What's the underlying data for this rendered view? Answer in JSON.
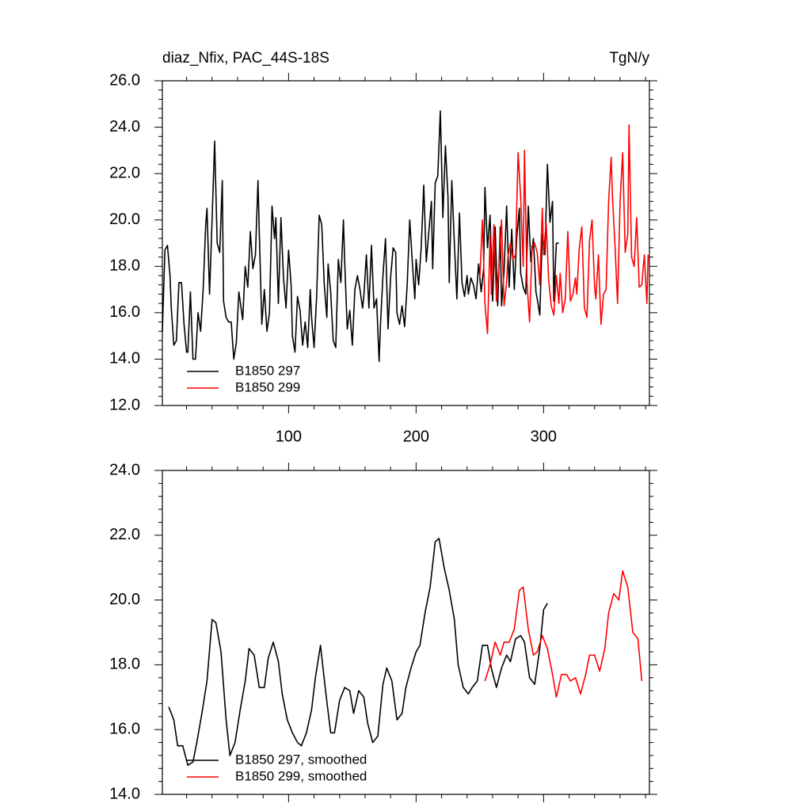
{
  "chart_data": [
    {
      "type": "line",
      "title": "diaz_Nfix, PAC_44S-18S",
      "units": "TgN/y",
      "xlim": [
        1,
        383
      ],
      "xticks": [
        100,
        200,
        300
      ],
      "xtick_labels": true,
      "ylim": [
        12,
        26
      ],
      "yticks": [
        {
          "value": 12,
          "label": "12.0"
        },
        {
          "value": 14,
          "label": "14.0"
        },
        {
          "value": 16,
          "label": "16.0"
        },
        {
          "value": 18,
          "label": "18.0"
        },
        {
          "value": 20,
          "label": "20.0"
        },
        {
          "value": 22,
          "label": "22.0"
        },
        {
          "value": 24,
          "label": "24.0"
        },
        {
          "value": 26,
          "label": "26.0"
        }
      ],
      "legend": "lower left",
      "series": [
        {
          "name": "B1850 297",
          "color": "#000000",
          "x": [
            1,
            3,
            5,
            7,
            8,
            10,
            12,
            14,
            16,
            18,
            20,
            21,
            23,
            25,
            27,
            29,
            31,
            33,
            35,
            36,
            38,
            40,
            42,
            44,
            46,
            48,
            49,
            51,
            53,
            55,
            57,
            59,
            61,
            62,
            64,
            66,
            68,
            70,
            72,
            74,
            76,
            77,
            79,
            81,
            83,
            85,
            87,
            89,
            90,
            92,
            94,
            96,
            98,
            100,
            102,
            103,
            105,
            107,
            109,
            111,
            113,
            115,
            117,
            118,
            120,
            122,
            124,
            126,
            128,
            130,
            131,
            133,
            135,
            137,
            139,
            141,
            143,
            144,
            146,
            148,
            150,
            152,
            154,
            156,
            158,
            159,
            161,
            163,
            165,
            167,
            169,
            171,
            172,
            174,
            176,
            178,
            180,
            182,
            184,
            185,
            187,
            189,
            191,
            193,
            195,
            197,
            199,
            200,
            202,
            204,
            206,
            208,
            210,
            212,
            213,
            215,
            217,
            219,
            221,
            223,
            225,
            226,
            228,
            230,
            232,
            234,
            236,
            238,
            240,
            241,
            243,
            245,
            247,
            249,
            251,
            253,
            254,
            256,
            258,
            260,
            262,
            264,
            266,
            267,
            269,
            271,
            273,
            275,
            277,
            279,
            281,
            282,
            284,
            286,
            288,
            290,
            292,
            294,
            295,
            297,
            299,
            301,
            303,
            305,
            307,
            308,
            310,
            312
          ],
          "values": [
            15.2,
            18.7,
            18.9,
            17.6,
            16.2,
            14.6,
            14.8,
            17.3,
            17.3,
            15.5,
            14.3,
            14.3,
            16.9,
            14.0,
            14.0,
            16.0,
            15.2,
            17.0,
            19.8,
            20.5,
            16.8,
            20.0,
            23.4,
            19.0,
            18.6,
            21.7,
            16.5,
            15.8,
            15.6,
            15.6,
            14.0,
            14.7,
            16.9,
            16.5,
            15.7,
            18.0,
            17.1,
            19.5,
            17.9,
            18.5,
            21.7,
            19.5,
            15.5,
            17.0,
            15.2,
            16.0,
            20.6,
            19.2,
            20.1,
            16.4,
            20.1,
            17.5,
            16.2,
            18.7,
            17.2,
            15.0,
            14.3,
            16.7,
            16.1,
            14.6,
            15.6,
            14.5,
            17.0,
            15.8,
            14.5,
            16.7,
            20.2,
            19.8,
            17.2,
            15.8,
            18.1,
            16.9,
            14.8,
            14.5,
            18.3,
            17.3,
            20.0,
            18.2,
            15.3,
            16.1,
            14.6,
            17.0,
            17.6,
            17.0,
            16.2,
            16.7,
            18.5,
            16.2,
            18.9,
            16.2,
            16.6,
            13.9,
            15.4,
            17.6,
            19.2,
            15.3,
            17.5,
            18.8,
            18.6,
            16.0,
            15.5,
            16.3,
            15.4,
            17.2,
            20.0,
            18.2,
            16.6,
            18.3,
            17.2,
            18.8,
            21.5,
            18.2,
            19.5,
            20.8,
            17.9,
            21.6,
            21.9,
            24.7,
            20.1,
            23.2,
            21.0,
            17.3,
            21.7,
            19.0,
            16.6,
            20.3,
            17.3,
            16.7,
            17.6,
            16.8,
            17.5,
            17.2,
            16.6,
            18.1,
            16.9,
            17.9,
            21.4,
            18.8,
            20.2,
            16.5,
            19.7,
            16.3,
            19.7,
            16.3,
            17.8,
            20.6,
            17.1,
            19.6,
            17.0,
            19.3,
            20.5,
            17.7,
            17.1,
            16.8,
            20.6,
            18.2,
            19.2,
            16.9,
            16.6,
            15.9,
            19.4,
            18.5,
            22.4,
            19.9,
            20.8,
            16.5,
            19.0,
            19.0
          ]
        },
        {
          "name": "B1850 299",
          "color": "#ff0000",
          "x": [
            250,
            252,
            254,
            256,
            258,
            259,
            261,
            263,
            265,
            267,
            269,
            271,
            272,
            274,
            276,
            278,
            280,
            282,
            284,
            285,
            287,
            289,
            291,
            293,
            295,
            297,
            299,
            300,
            302,
            304,
            306,
            308,
            310,
            312,
            313,
            315,
            317,
            319,
            321,
            323,
            325,
            326,
            328,
            330,
            332,
            334,
            336,
            338,
            340,
            341,
            343,
            345,
            347,
            349,
            351,
            353,
            354,
            356,
            358,
            360,
            362,
            364,
            366,
            367,
            369,
            371,
            373,
            375,
            377,
            379,
            381,
            382
          ],
          "values": [
            17.5,
            20.0,
            16.4,
            15.1,
            19.3,
            16.8,
            19.8,
            16.5,
            18.0,
            20.0,
            16.3,
            17.3,
            18.4,
            19.0,
            18.3,
            18.5,
            22.9,
            21.0,
            18.0,
            23.0,
            17.3,
            15.6,
            18.9,
            19.0,
            18.6,
            17.2,
            20.5,
            18.5,
            19.9,
            17.4,
            16.3,
            15.9,
            17.6,
            16.4,
            17.7,
            16.0,
            16.6,
            19.5,
            16.5,
            16.8,
            17.5,
            16.8,
            18.8,
            19.7,
            16.2,
            15.8,
            19.1,
            20.0,
            17.1,
            16.6,
            18.5,
            15.5,
            16.8,
            17.0,
            20.8,
            22.7,
            21.0,
            18.9,
            16.4,
            20.8,
            22.9,
            18.6,
            19.4,
            24.1,
            18.4,
            18.0,
            20.1,
            17.1,
            17.2,
            18.5,
            16.4,
            18.5
          ]
        }
      ]
    },
    {
      "type": "line",
      "xlim": [
        1,
        383
      ],
      "xticks": [
        100,
        200,
        300
      ],
      "xtick_labels": false,
      "ylim": [
        14,
        24
      ],
      "yticks": [
        {
          "value": 14,
          "label": "14.0"
        },
        {
          "value": 16,
          "label": "16.0"
        },
        {
          "value": 18,
          "label": "18.0"
        },
        {
          "value": 20,
          "label": "20.0"
        },
        {
          "value": 22,
          "label": "22.0"
        },
        {
          "value": 24,
          "label": "24.0"
        }
      ],
      "legend": "lower left",
      "series": [
        {
          "name": "B1850 297, smoothed",
          "color": "#000000",
          "x": [
            6,
            10,
            13,
            17,
            21,
            25,
            28,
            32,
            36,
            40,
            43,
            47,
            51,
            54,
            58,
            62,
            66,
            69,
            73,
            77,
            81,
            84,
            88,
            92,
            95,
            99,
            103,
            107,
            110,
            114,
            118,
            121,
            125,
            129,
            133,
            136,
            140,
            144,
            148,
            151,
            155,
            159,
            162,
            166,
            170,
            174,
            177,
            181,
            185,
            189,
            192,
            196,
            200,
            203,
            207,
            211,
            215,
            218,
            222,
            226,
            230,
            233,
            237,
            241,
            244,
            248,
            252,
            256,
            259,
            263,
            267,
            271,
            274,
            278,
            282,
            285,
            289,
            293,
            297,
            300,
            303
          ],
          "values": [
            16.7,
            16.3,
            15.5,
            15.5,
            14.9,
            15.0,
            15.6,
            16.5,
            17.5,
            19.4,
            19.3,
            18.4,
            16.3,
            15.2,
            15.6,
            16.6,
            17.5,
            18.5,
            18.3,
            17.3,
            17.3,
            18.2,
            18.7,
            18.1,
            17.1,
            16.3,
            15.9,
            15.6,
            15.5,
            15.9,
            16.6,
            17.6,
            18.6,
            17.2,
            15.9,
            15.9,
            16.9,
            17.3,
            17.2,
            16.5,
            17.2,
            17.0,
            16.2,
            15.6,
            15.8,
            17.4,
            17.9,
            17.5,
            16.3,
            16.5,
            17.3,
            17.9,
            18.4,
            18.6,
            19.6,
            20.4,
            21.8,
            21.9,
            21.0,
            20.3,
            19.4,
            18.0,
            17.3,
            17.1,
            17.3,
            17.5,
            18.6,
            18.6,
            17.9,
            17.3,
            17.9,
            18.3,
            18.1,
            18.8,
            18.9,
            18.7,
            17.6,
            17.4,
            18.5,
            19.7,
            19.9
          ]
        },
        {
          "name": "B1850 299, smoothed",
          "color": "#ff0000",
          "x": [
            254,
            258,
            262,
            266,
            269,
            273,
            277,
            281,
            284,
            288,
            292,
            295,
            299,
            303,
            307,
            310,
            314,
            318,
            321,
            325,
            329,
            333,
            336,
            340,
            344,
            348,
            351,
            355,
            359,
            362,
            366,
            370,
            374,
            377
          ],
          "values": [
            17.5,
            18.0,
            18.7,
            18.3,
            18.7,
            18.7,
            19.1,
            20.3,
            20.4,
            19.1,
            18.3,
            18.4,
            18.9,
            18.5,
            17.7,
            17.0,
            17.7,
            17.7,
            17.5,
            17.6,
            17.1,
            17.7,
            18.3,
            18.3,
            17.8,
            18.5,
            19.6,
            20.2,
            20.0,
            20.9,
            20.4,
            19.0,
            18.8,
            17.5
          ]
        }
      ]
    }
  ]
}
